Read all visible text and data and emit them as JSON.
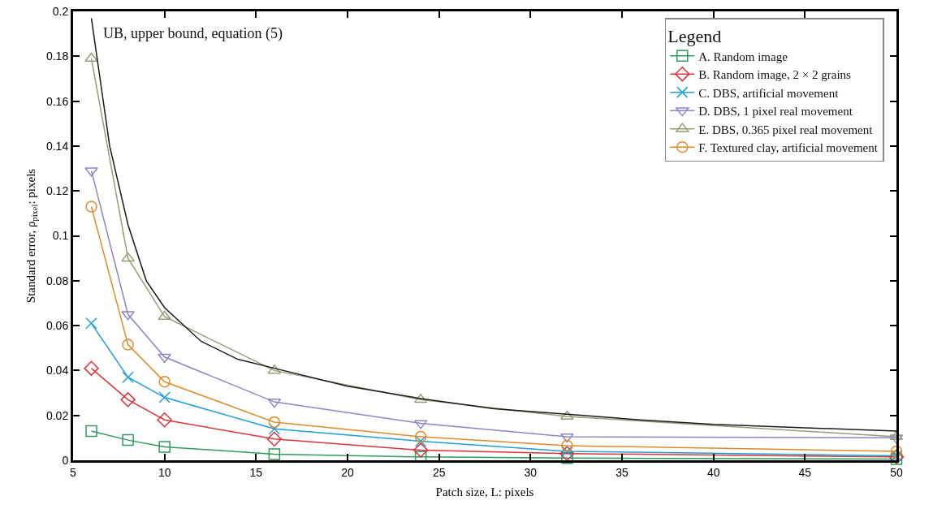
{
  "chart_data": {
    "type": "line",
    "xlabel": "Patch size, L: pixels",
    "ylabel": "Standard error, ρ$_{pixel}$: pixels",
    "legend_title": "Legend",
    "legend": "top right",
    "grid": false,
    "x": [
      6,
      8,
      10,
      16,
      24,
      32,
      50
    ],
    "xlim": [
      5,
      50
    ],
    "xticks": [
      5,
      10,
      15,
      20,
      25,
      30,
      35,
      40,
      45,
      50
    ],
    "ylim": [
      0,
      0.2
    ],
    "yticks": [
      0,
      {
        "value": 0.02,
        "label": "0.02"
      },
      {
        "value": 0.04,
        "label": "0.04"
      },
      {
        "value": 0.06,
        "label": "0.06"
      },
      {
        "value": 0.08,
        "label": "0.08"
      },
      {
        "value": 0.1,
        "label": "0.1"
      },
      {
        "value": 0.12,
        "label": "0.12"
      },
      {
        "value": 0.14,
        "label": "0.14"
      },
      {
        "value": 0.16,
        "label": "0.16"
      },
      {
        "value": 0.18,
        "label": "0.18"
      },
      {
        "value": 0.2,
        "label": "0.2"
      }
    ],
    "annotations": [
      "UB, upper bound, equation (5)"
    ],
    "series": [
      {
        "name": "A. Random image",
        "color": "#2e9a5c",
        "marker": "square",
        "values": [
          0.013,
          0.009,
          0.006,
          0.0027,
          0.0015,
          0.001,
          0.0005
        ]
      },
      {
        "name": "B. Random image, 2 × 2 grains",
        "color": "#d9343a",
        "marker": "diamond",
        "values": [
          0.041,
          0.027,
          0.018,
          0.0095,
          0.0045,
          0.003,
          0.0015
        ]
      },
      {
        "name": "C. DBS, artificial movement",
        "color": "#1e9fd6",
        "marker": "cross",
        "values": [
          0.061,
          0.037,
          0.028,
          0.014,
          0.0085,
          0.004,
          0.002
        ]
      },
      {
        "name": "D. DBS, 1 pixel real movement",
        "color": "#8a86c8",
        "marker": "triangle-down",
        "values": [
          0.129,
          0.065,
          0.046,
          0.026,
          0.0165,
          0.0105,
          0.01
        ]
      },
      {
        "name": "E. DBS, 0.365 pixel real movement",
        "color": "#9a9a78",
        "marker": "triangle",
        "values": [
          0.179,
          0.09,
          0.064,
          0.04,
          0.027,
          0.0195,
          0.0105
        ]
      },
      {
        "name": "F. Textured clay, artificial movement",
        "color": "#e08a2a",
        "marker": "circle",
        "values": [
          0.113,
          0.0515,
          0.035,
          0.017,
          0.0105,
          0.0065,
          0.004
        ]
      },
      {
        "color": "#1a1a1a",
        "marker": "none",
        "x": [
          6,
          7,
          8,
          9,
          10,
          12,
          14,
          16,
          20,
          24,
          28,
          32,
          36,
          40,
          45,
          50
        ],
        "values": [
          0.197,
          0.14,
          0.105,
          0.08,
          0.068,
          0.053,
          0.045,
          0.041,
          0.033,
          0.0275,
          0.023,
          0.0205,
          0.018,
          0.016,
          0.0145,
          0.013
        ]
      }
    ]
  }
}
